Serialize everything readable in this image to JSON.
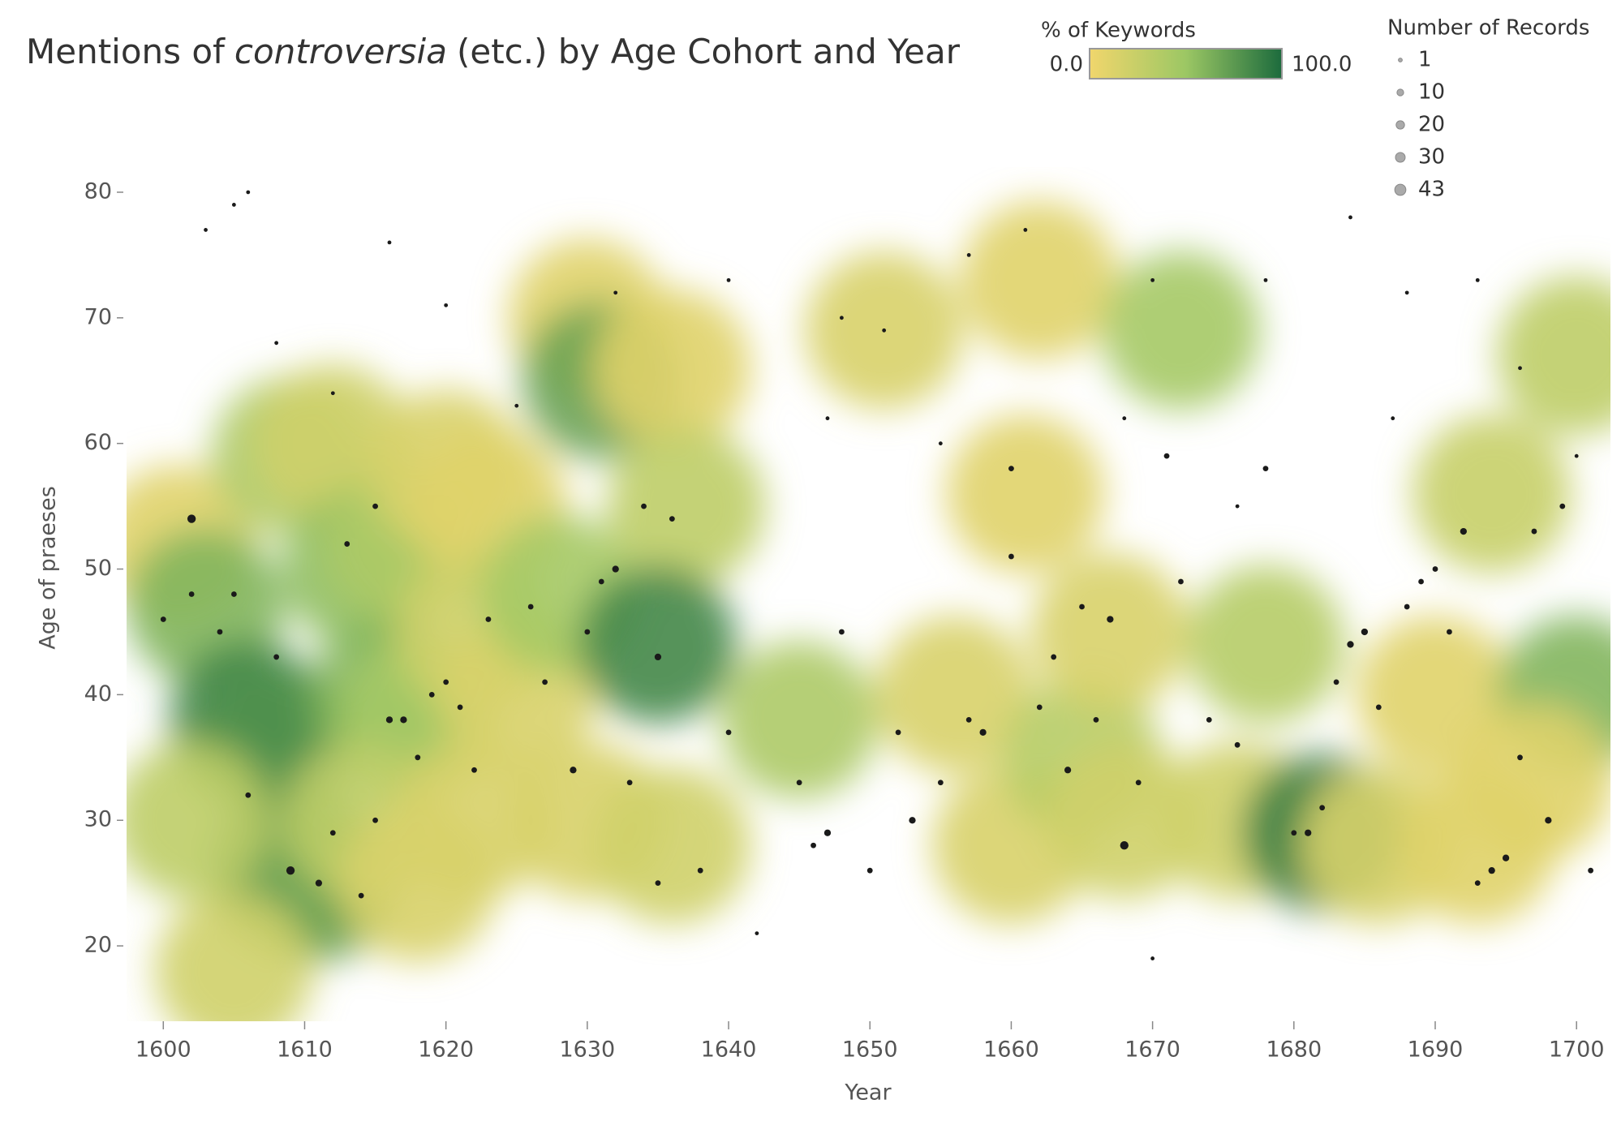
{
  "chart_data": {
    "type": "scatter",
    "title": {
      "before": "Mentions of",
      "italic": "controversia",
      "after": "(etc.) by Age Cohort and Year"
    },
    "x_label": "Year",
    "y_label": "Age of praeses",
    "xlim": [
      1597.4,
      1702.4
    ],
    "ylim": [
      14,
      82
    ],
    "xticks": [
      1600,
      1610,
      1620,
      1630,
      1640,
      1650,
      1660,
      1670,
      1680,
      1690,
      1700
    ],
    "yticks": [
      20,
      30,
      40,
      50,
      60,
      70,
      80
    ],
    "color_legend": {
      "title": "% of Keywords",
      "min": {
        "value": 0,
        "label": "0.0"
      },
      "max": {
        "value": 100,
        "label": "100.0"
      },
      "colors": [
        "#f1d66c",
        "#9cc764",
        "#1c6b3d"
      ]
    },
    "size_legend": {
      "title": "Number of Records",
      "sizes": [
        1,
        10,
        20,
        30,
        43
      ]
    },
    "point_color": "#1a1a1a",
    "heat": [
      {
        "year": 1601,
        "age": 52,
        "pct": 10
      },
      {
        "year": 1603,
        "age": 47,
        "pct": 60
      },
      {
        "year": 1606,
        "age": 38,
        "pct": 85
      },
      {
        "year": 1608,
        "age": 36,
        "pct": 80
      },
      {
        "year": 1609,
        "age": 26,
        "pct": 80
      },
      {
        "year": 1611,
        "age": 25,
        "pct": 70
      },
      {
        "year": 1605,
        "age": 18,
        "pct": 20
      },
      {
        "year": 1602,
        "age": 30,
        "pct": 30
      },
      {
        "year": 1609,
        "age": 59,
        "pct": 40
      },
      {
        "year": 1612,
        "age": 60,
        "pct": 20
      },
      {
        "year": 1614,
        "age": 50,
        "pct": 55
      },
      {
        "year": 1617,
        "age": 52,
        "pct": 40
      },
      {
        "year": 1616,
        "age": 40,
        "pct": 60
      },
      {
        "year": 1618,
        "age": 38,
        "pct": 45
      },
      {
        "year": 1614,
        "age": 30,
        "pct": 30
      },
      {
        "year": 1618,
        "age": 25,
        "pct": 15
      },
      {
        "year": 1620,
        "age": 58,
        "pct": 15
      },
      {
        "year": 1623,
        "age": 55,
        "pct": 10
      },
      {
        "year": 1622,
        "age": 45,
        "pct": 20
      },
      {
        "year": 1625,
        "age": 40,
        "pct": 15
      },
      {
        "year": 1622,
        "age": 30,
        "pct": 15
      },
      {
        "year": 1628,
        "age": 48,
        "pct": 45
      },
      {
        "year": 1630,
        "age": 70,
        "pct": 10
      },
      {
        "year": 1631,
        "age": 65,
        "pct": 70
      },
      {
        "year": 1636,
        "age": 66,
        "pct": 10
      },
      {
        "year": 1637,
        "age": 55,
        "pct": 30
      },
      {
        "year": 1635,
        "age": 44,
        "pct": 85
      },
      {
        "year": 1630,
        "age": 30,
        "pct": 15
      },
      {
        "year": 1636,
        "age": 28,
        "pct": 20
      },
      {
        "year": 1645,
        "age": 38,
        "pct": 40
      },
      {
        "year": 1651,
        "age": 69,
        "pct": 15
      },
      {
        "year": 1661,
        "age": 56,
        "pct": 10
      },
      {
        "year": 1662,
        "age": 73,
        "pct": 10
      },
      {
        "year": 1656,
        "age": 40,
        "pct": 15
      },
      {
        "year": 1660,
        "age": 28,
        "pct": 15
      },
      {
        "year": 1665,
        "age": 35,
        "pct": 35
      },
      {
        "year": 1667,
        "age": 45,
        "pct": 15
      },
      {
        "year": 1668,
        "age": 30,
        "pct": 20
      },
      {
        "year": 1672,
        "age": 69,
        "pct": 45
      },
      {
        "year": 1678,
        "age": 44,
        "pct": 35
      },
      {
        "year": 1676,
        "age": 30,
        "pct": 20
      },
      {
        "year": 1682,
        "age": 29,
        "pct": 90
      },
      {
        "year": 1686,
        "age": 28,
        "pct": 15
      },
      {
        "year": 1690,
        "age": 40,
        "pct": 10
      },
      {
        "year": 1694,
        "age": 56,
        "pct": 25
      },
      {
        "year": 1693,
        "age": 28,
        "pct": 10
      },
      {
        "year": 1700,
        "age": 40,
        "pct": 60
      },
      {
        "year": 1700,
        "age": 67,
        "pct": 30
      },
      {
        "year": 1697,
        "age": 33,
        "pct": 10
      }
    ],
    "points": [
      {
        "year": 1602,
        "age": 54,
        "records": 20
      },
      {
        "year": 1600,
        "age": 46,
        "records": 5
      },
      {
        "year": 1602,
        "age": 48,
        "records": 5
      },
      {
        "year": 1604,
        "age": 45,
        "records": 5
      },
      {
        "year": 1605,
        "age": 48,
        "records": 5
      },
      {
        "year": 1606,
        "age": 32,
        "records": 5
      },
      {
        "year": 1608,
        "age": 43,
        "records": 5
      },
      {
        "year": 1609,
        "age": 26,
        "records": 20
      },
      {
        "year": 1611,
        "age": 25,
        "records": 10
      },
      {
        "year": 1612,
        "age": 29,
        "records": 5
      },
      {
        "year": 1613,
        "age": 52,
        "records": 5
      },
      {
        "year": 1614,
        "age": 24,
        "records": 5
      },
      {
        "year": 1615,
        "age": 30,
        "records": 5
      },
      {
        "year": 1615,
        "age": 55,
        "records": 5
      },
      {
        "year": 1616,
        "age": 38,
        "records": 10
      },
      {
        "year": 1617,
        "age": 38,
        "records": 10
      },
      {
        "year": 1618,
        "age": 35,
        "records": 5
      },
      {
        "year": 1619,
        "age": 40,
        "records": 5
      },
      {
        "year": 1620,
        "age": 41,
        "records": 5
      },
      {
        "year": 1621,
        "age": 39,
        "records": 5
      },
      {
        "year": 1622,
        "age": 34,
        "records": 5
      },
      {
        "year": 1623,
        "age": 46,
        "records": 5
      },
      {
        "year": 1626,
        "age": 47,
        "records": 5
      },
      {
        "year": 1627,
        "age": 41,
        "records": 5
      },
      {
        "year": 1629,
        "age": 34,
        "records": 10
      },
      {
        "year": 1630,
        "age": 45,
        "records": 5
      },
      {
        "year": 1631,
        "age": 49,
        "records": 5
      },
      {
        "year": 1632,
        "age": 50,
        "records": 10
      },
      {
        "year": 1633,
        "age": 33,
        "records": 5
      },
      {
        "year": 1634,
        "age": 55,
        "records": 5
      },
      {
        "year": 1635,
        "age": 43,
        "records": 10
      },
      {
        "year": 1635,
        "age": 25,
        "records": 5
      },
      {
        "year": 1636,
        "age": 54,
        "records": 5
      },
      {
        "year": 1638,
        "age": 26,
        "records": 5
      },
      {
        "year": 1640,
        "age": 37,
        "records": 5
      },
      {
        "year": 1642,
        "age": 21,
        "records": 1
      },
      {
        "year": 1645,
        "age": 33,
        "records": 5
      },
      {
        "year": 1646,
        "age": 28,
        "records": 5
      },
      {
        "year": 1647,
        "age": 29,
        "records": 10
      },
      {
        "year": 1648,
        "age": 45,
        "records": 5
      },
      {
        "year": 1650,
        "age": 26,
        "records": 5
      },
      {
        "year": 1651,
        "age": 69,
        "records": 1
      },
      {
        "year": 1652,
        "age": 37,
        "records": 5
      },
      {
        "year": 1653,
        "age": 30,
        "records": 10
      },
      {
        "year": 1655,
        "age": 33,
        "records": 5
      },
      {
        "year": 1657,
        "age": 38,
        "records": 5
      },
      {
        "year": 1658,
        "age": 37,
        "records": 10
      },
      {
        "year": 1660,
        "age": 58,
        "records": 5
      },
      {
        "year": 1660,
        "age": 51,
        "records": 5
      },
      {
        "year": 1662,
        "age": 39,
        "records": 5
      },
      {
        "year": 1663,
        "age": 43,
        "records": 5
      },
      {
        "year": 1664,
        "age": 34,
        "records": 10
      },
      {
        "year": 1665,
        "age": 47,
        "records": 5
      },
      {
        "year": 1666,
        "age": 38,
        "records": 5
      },
      {
        "year": 1667,
        "age": 46,
        "records": 10
      },
      {
        "year": 1668,
        "age": 28,
        "records": 20
      },
      {
        "year": 1669,
        "age": 33,
        "records": 5
      },
      {
        "year": 1670,
        "age": 19,
        "records": 1
      },
      {
        "year": 1671,
        "age": 59,
        "records": 5
      },
      {
        "year": 1672,
        "age": 49,
        "records": 5
      },
      {
        "year": 1674,
        "age": 38,
        "records": 5
      },
      {
        "year": 1676,
        "age": 36,
        "records": 5
      },
      {
        "year": 1678,
        "age": 58,
        "records": 5
      },
      {
        "year": 1680,
        "age": 29,
        "records": 5
      },
      {
        "year": 1681,
        "age": 29,
        "records": 10
      },
      {
        "year": 1682,
        "age": 31,
        "records": 5
      },
      {
        "year": 1683,
        "age": 41,
        "records": 5
      },
      {
        "year": 1684,
        "age": 44,
        "records": 10
      },
      {
        "year": 1685,
        "age": 45,
        "records": 10
      },
      {
        "year": 1686,
        "age": 39,
        "records": 5
      },
      {
        "year": 1688,
        "age": 47,
        "records": 5
      },
      {
        "year": 1689,
        "age": 49,
        "records": 5
      },
      {
        "year": 1690,
        "age": 50,
        "records": 5
      },
      {
        "year": 1691,
        "age": 45,
        "records": 5
      },
      {
        "year": 1692,
        "age": 53,
        "records": 10
      },
      {
        "year": 1693,
        "age": 25,
        "records": 5
      },
      {
        "year": 1694,
        "age": 26,
        "records": 10
      },
      {
        "year": 1695,
        "age": 27,
        "records": 10
      },
      {
        "year": 1696,
        "age": 35,
        "records": 5
      },
      {
        "year": 1697,
        "age": 53,
        "records": 5
      },
      {
        "year": 1698,
        "age": 30,
        "records": 10
      },
      {
        "year": 1699,
        "age": 55,
        "records": 5
      },
      {
        "year": 1700,
        "age": 59,
        "records": 1
      },
      {
        "year": 1701,
        "age": 26,
        "records": 5
      },
      {
        "year": 1603,
        "age": 77,
        "records": 1
      },
      {
        "year": 1605,
        "age": 79,
        "records": 1
      },
      {
        "year": 1606,
        "age": 80,
        "records": 1
      },
      {
        "year": 1616,
        "age": 76,
        "records": 1
      },
      {
        "year": 1620,
        "age": 71,
        "records": 1
      },
      {
        "year": 1632,
        "age": 72,
        "records": 1
      },
      {
        "year": 1640,
        "age": 73,
        "records": 1
      },
      {
        "year": 1648,
        "age": 70,
        "records": 1
      },
      {
        "year": 1657,
        "age": 75,
        "records": 1
      },
      {
        "year": 1661,
        "age": 77,
        "records": 1
      },
      {
        "year": 1670,
        "age": 73,
        "records": 1
      },
      {
        "year": 1678,
        "age": 73,
        "records": 1
      },
      {
        "year": 1684,
        "age": 78,
        "records": 1
      },
      {
        "year": 1688,
        "age": 72,
        "records": 1
      },
      {
        "year": 1693,
        "age": 73,
        "records": 1
      },
      {
        "year": 1696,
        "age": 66,
        "records": 1
      },
      {
        "year": 1608,
        "age": 68,
        "records": 1
      },
      {
        "year": 1612,
        "age": 64,
        "records": 1
      },
      {
        "year": 1625,
        "age": 63,
        "records": 1
      },
      {
        "year": 1647,
        "age": 62,
        "records": 1
      },
      {
        "year": 1655,
        "age": 60,
        "records": 1
      },
      {
        "year": 1668,
        "age": 62,
        "records": 1
      },
      {
        "year": 1676,
        "age": 55,
        "records": 1
      },
      {
        "year": 1687,
        "age": 62,
        "records": 1
      }
    ]
  }
}
